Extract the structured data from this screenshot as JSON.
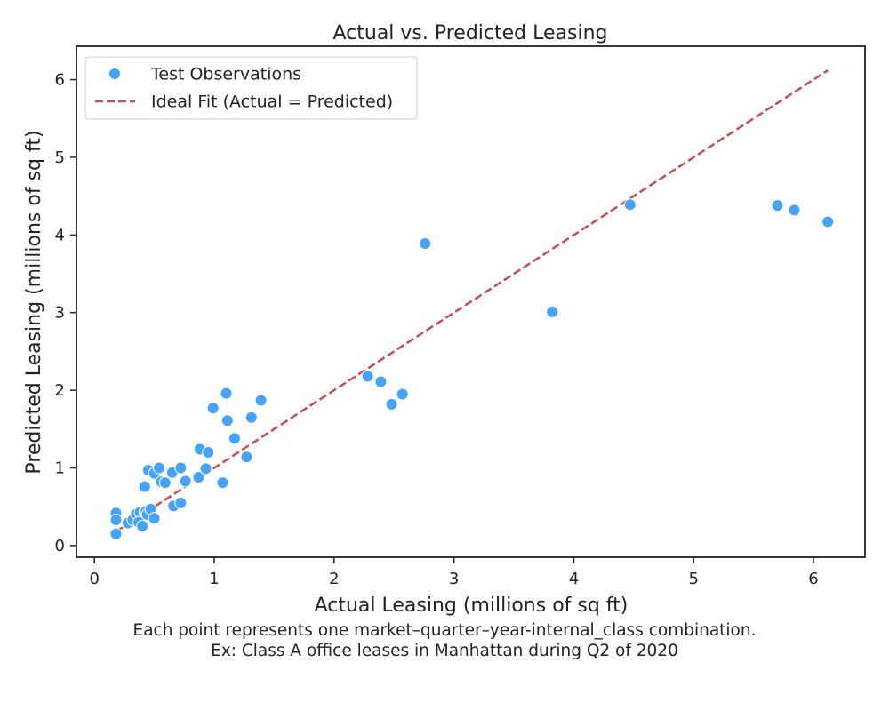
{
  "chart_data": {
    "type": "scatter",
    "title": "Actual vs. Predicted Leasing",
    "xlabel": "Actual Leasing (millions of sq ft)",
    "ylabel": "Predicted Leasing (millions of sq ft)",
    "xlim": [
      -0.15,
      6.43
    ],
    "ylim": [
      -0.15,
      6.43
    ],
    "xticks": [
      0,
      1,
      2,
      3,
      4,
      5,
      6
    ],
    "yticks": [
      0,
      1,
      2,
      3,
      4,
      5,
      6
    ],
    "grid": false,
    "legend_position": "top-left",
    "colors": {
      "points": "#45a3fa",
      "ideal_line": "#c44e52"
    },
    "series": [
      {
        "name": "Test Observations",
        "kind": "scatter",
        "points": [
          [
            0.18,
            0.42
          ],
          [
            0.18,
            0.33
          ],
          [
            0.18,
            0.15
          ],
          [
            0.28,
            0.29
          ],
          [
            0.32,
            0.33
          ],
          [
            0.35,
            0.41
          ],
          [
            0.38,
            0.43
          ],
          [
            0.37,
            0.3
          ],
          [
            0.4,
            0.25
          ],
          [
            0.42,
            0.43
          ],
          [
            0.42,
            0.76
          ],
          [
            0.43,
            0.44
          ],
          [
            0.44,
            0.4
          ],
          [
            0.45,
            0.97
          ],
          [
            0.47,
            0.47
          ],
          [
            0.5,
            0.93
          ],
          [
            0.5,
            0.35
          ],
          [
            0.54,
            1.0
          ],
          [
            0.56,
            0.82
          ],
          [
            0.59,
            0.81
          ],
          [
            0.65,
            0.94
          ],
          [
            0.66,
            0.51
          ],
          [
            0.72,
            0.55
          ],
          [
            0.72,
            1.0
          ],
          [
            0.76,
            0.83
          ],
          [
            0.87,
            0.88
          ],
          [
            0.88,
            1.24
          ],
          [
            0.93,
            0.99
          ],
          [
            0.95,
            1.2
          ],
          [
            0.99,
            1.77
          ],
          [
            1.07,
            0.81
          ],
          [
            1.1,
            1.96
          ],
          [
            1.11,
            1.61
          ],
          [
            1.17,
            1.38
          ],
          [
            1.27,
            1.14
          ],
          [
            1.31,
            1.65
          ],
          [
            1.39,
            1.87
          ],
          [
            2.28,
            2.18
          ],
          [
            2.39,
            2.11
          ],
          [
            2.48,
            1.82
          ],
          [
            2.57,
            1.95
          ],
          [
            2.76,
            3.89
          ],
          [
            3.82,
            3.01
          ],
          [
            4.47,
            4.39
          ],
          [
            5.7,
            4.38
          ],
          [
            5.84,
            4.32
          ],
          [
            6.12,
            4.17
          ]
        ]
      },
      {
        "name": "Ideal Fit (Actual = Predicted)",
        "kind": "line",
        "points": [
          [
            0.18,
            0.18
          ],
          [
            6.12,
            6.12
          ]
        ]
      }
    ]
  },
  "caption": {
    "line1": "Each point represents one market–quarter–year-internal_class combination.",
    "line2": "Ex: Class A office leases in Manhattan during Q2 of 2020"
  }
}
